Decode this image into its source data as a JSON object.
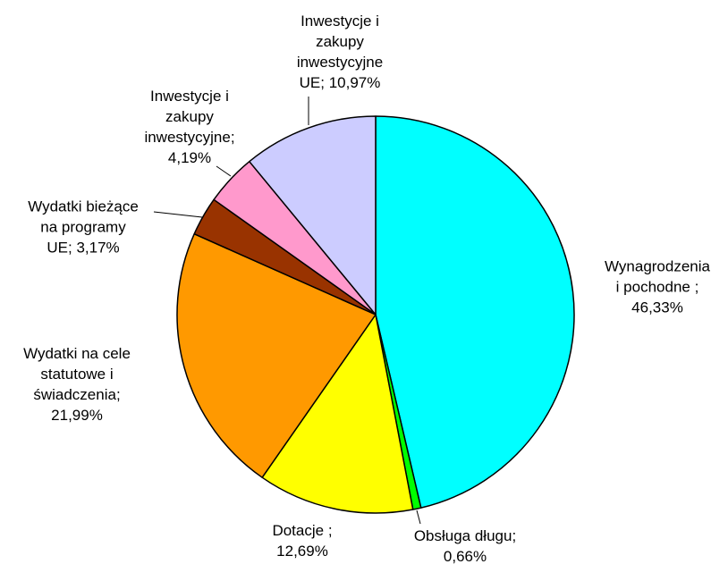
{
  "chart_data": {
    "type": "pie",
    "categories": [
      "Wynagrodzenia\ni pochodne ;",
      "Obsługa długu;",
      "Dotacje ;",
      "Wydatki na cele\nstatutowe i\nświadczenia;",
      "Wydatki bieżące\nna programy\nUE;",
      "Inwestycje i\nzakupy\ninwestycyjne;",
      "Inwestycje i\nzakupy\ninwestycyjne\nUE;"
    ],
    "values": [
      46.33,
      0.66,
      12.69,
      21.99,
      3.17,
      4.19,
      10.97
    ],
    "value_labels": [
      "46,33%",
      "0,66%",
      "12,69%",
      "21,99%",
      "3,17%",
      "4,19%",
      "10,97%"
    ],
    "colors": [
      "#00ffff",
      "#00ff00",
      "#ffff00",
      "#ff9900",
      "#993300",
      "#ff99cc",
      "#ccccff"
    ]
  }
}
